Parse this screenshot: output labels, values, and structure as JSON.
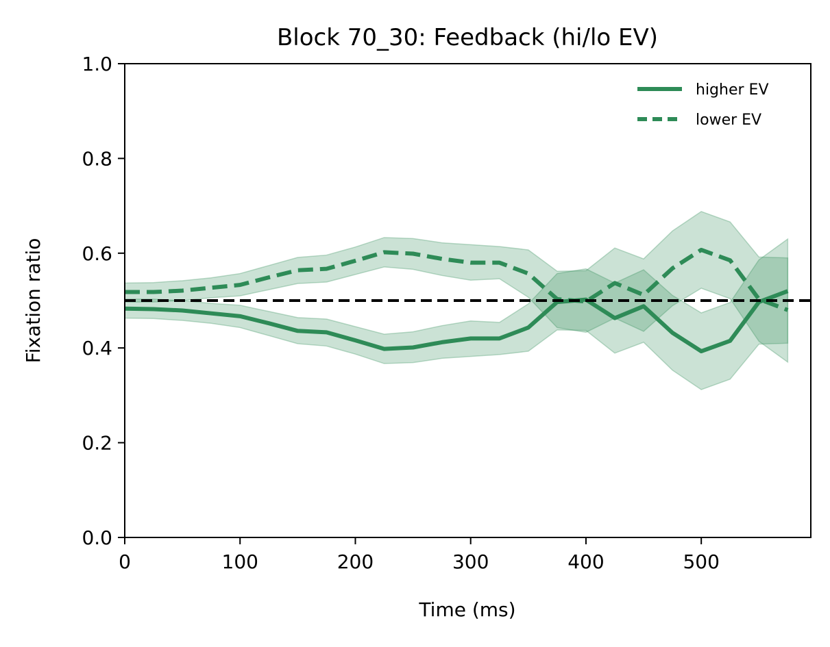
{
  "chart_data": {
    "type": "line",
    "title": "Block 70_30: Feedback (hi/lo EV)",
    "xlabel": "Time (ms)",
    "ylabel": "Fixation ratio",
    "xlim": [
      0,
      595
    ],
    "ylim": [
      0,
      1.0
    ],
    "xticks": [
      0,
      100,
      200,
      300,
      400,
      500
    ],
    "xtick_labels": [
      "0",
      "100",
      "200",
      "300",
      "400",
      "500"
    ],
    "yticks": [
      0,
      0.2,
      0.4,
      0.6,
      0.8,
      1.0
    ],
    "ytick_labels": [
      "0.0",
      "0.2",
      "0.4",
      "0.6",
      "0.8",
      "1.0"
    ],
    "grid": false,
    "legend_position": "top-right",
    "reference_line": {
      "y": 0.5,
      "style": "dashed",
      "color": "#000000"
    },
    "x": [
      0,
      25,
      50,
      75,
      100,
      125,
      150,
      175,
      200,
      225,
      250,
      275,
      300,
      325,
      350,
      375,
      400,
      425,
      450,
      475,
      500,
      525,
      550,
      575
    ],
    "series": [
      {
        "name": "higher EV",
        "style": "solid",
        "color": "#2e8b57",
        "values": [
          0.483,
          0.482,
          0.479,
          0.473,
          0.467,
          0.452,
          0.436,
          0.433,
          0.416,
          0.398,
          0.401,
          0.412,
          0.42,
          0.42,
          0.443,
          0.497,
          0.502,
          0.463,
          0.488,
          0.432,
          0.393,
          0.415,
          0.497,
          0.52
        ],
        "lower": [
          0.463,
          0.462,
          0.458,
          0.452,
          0.443,
          0.426,
          0.409,
          0.404,
          0.387,
          0.367,
          0.369,
          0.378,
          0.382,
          0.386,
          0.393,
          0.438,
          0.437,
          0.389,
          0.412,
          0.353,
          0.312,
          0.334,
          0.408,
          0.41
        ],
        "upper": [
          0.503,
          0.503,
          0.5,
          0.494,
          0.49,
          0.477,
          0.464,
          0.461,
          0.445,
          0.429,
          0.434,
          0.447,
          0.457,
          0.454,
          0.493,
          0.557,
          0.567,
          0.537,
          0.565,
          0.511,
          0.474,
          0.496,
          0.586,
          0.63
        ]
      },
      {
        "name": "lower EV",
        "style": "dashed",
        "color": "#2e8b57",
        "values": [
          0.518,
          0.518,
          0.521,
          0.527,
          0.533,
          0.549,
          0.564,
          0.567,
          0.584,
          0.602,
          0.599,
          0.588,
          0.58,
          0.58,
          0.557,
          0.503,
          0.498,
          0.537,
          0.512,
          0.568,
          0.607,
          0.585,
          0.503,
          0.48
        ]
      }
    ],
    "band_color": "#2e8b57",
    "band_opacity": 0.25
  }
}
